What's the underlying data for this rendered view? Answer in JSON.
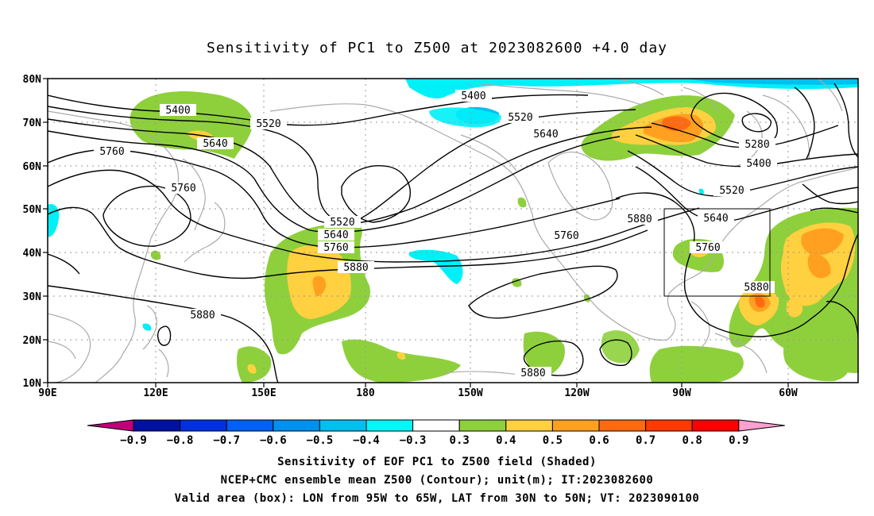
{
  "title": "Sensitivity of PC1 to Z500 at 2023082600 +4.0 day",
  "lat_labels": [
    "80N",
    "70N",
    "60N",
    "50N",
    "40N",
    "30N",
    "20N",
    "10N"
  ],
  "lon_labels": [
    "90E",
    "120E",
    "150E",
    "180",
    "150W",
    "120W",
    "90W",
    "60W"
  ],
  "contour_labels": [
    "5400",
    "5520",
    "5640",
    "5760",
    "5760",
    "5400",
    "5520",
    "5640",
    "5520",
    "5640",
    "5760",
    "5880",
    "5880",
    "5760",
    "5880",
    "5880",
    "5280",
    "5400",
    "5520",
    "5640",
    "5760",
    "5880"
  ],
  "colorbar": {
    "labels": [
      "-0.9",
      "-0.8",
      "-0.7",
      "-0.6",
      "-0.5",
      "-0.4",
      "-0.3",
      "0.3",
      "0.4",
      "0.5",
      "0.6",
      "0.7",
      "0.8",
      "0.9"
    ],
    "colors": [
      "#0010a0",
      "#0030e0",
      "#0060f8",
      "#0090f0",
      "#00c0f0",
      "#00f8f8",
      "#ffffff",
      "#8ed03c",
      "#ffd040",
      "#ffa020",
      "#ff6a10",
      "#ff3a00",
      "#ff0000"
    ],
    "end_left_color": "#c0007a",
    "end_right_color": "#ffa0d0"
  },
  "captions": [
    "Sensitivity of EOF PC1 to Z500 field (Shaded)",
    "NCEP+CMC ensemble mean Z500 (Contour); unit(m); IT:2023082600",
    "Valid area (box): LON from 95W to 65W, LAT from 30N to 50N; VT: 2023090100"
  ],
  "colors": {
    "frame": "#000000",
    "coast": "#aaaaaa",
    "grid": "#999999",
    "contour": "#000000"
  }
}
